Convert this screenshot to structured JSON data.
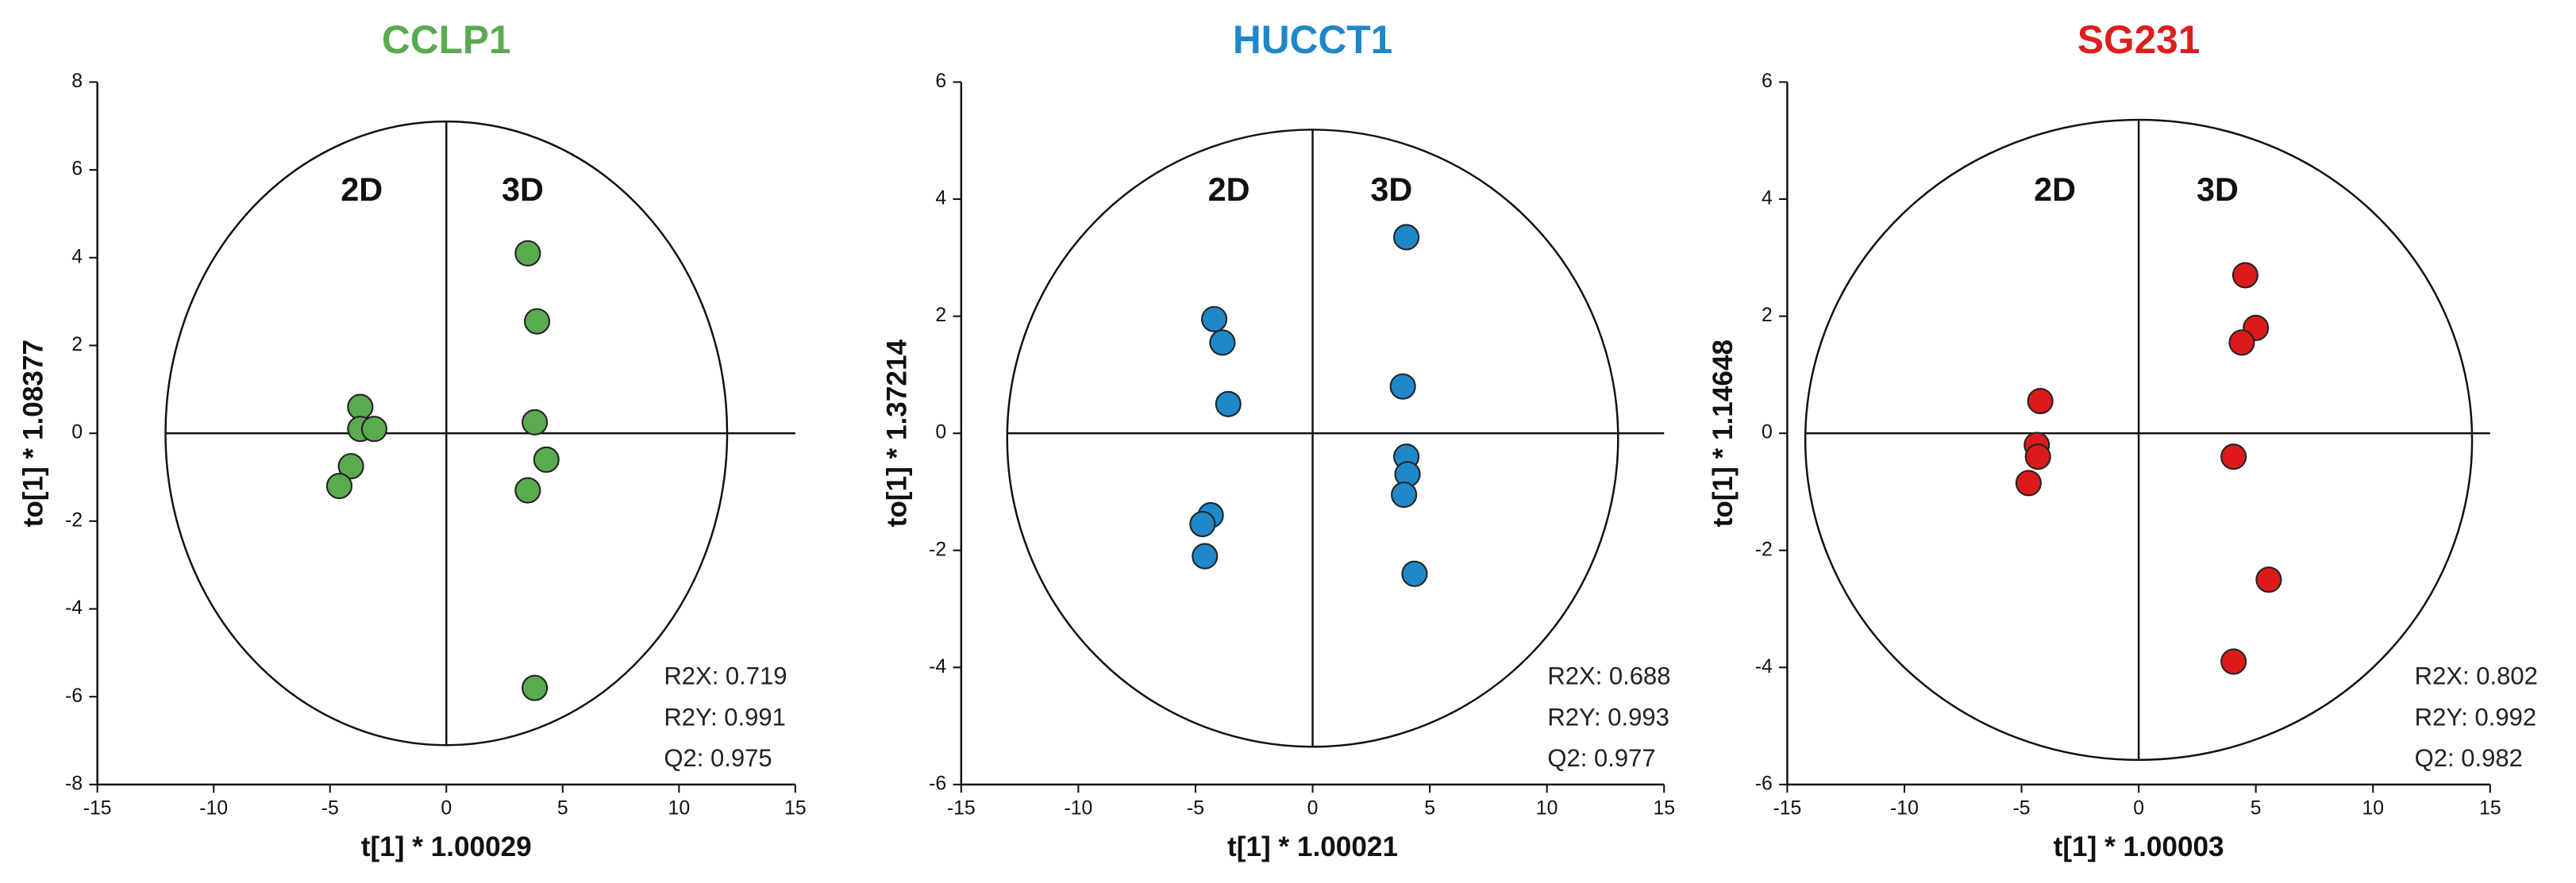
{
  "chart_data": [
    {
      "type": "scatter",
      "title": "CCLP1",
      "title_color": "#5aaa50",
      "color": "#5aaa50",
      "x_label": "t[1] * 1.00029",
      "y_label": "to[1] * 1.08377",
      "xlim": [
        -15,
        15
      ],
      "xticks": [
        -15,
        -10,
        -5,
        0,
        5,
        10,
        15
      ],
      "ylim": [
        -8,
        8
      ],
      "yticks": [
        -8,
        -6,
        -4,
        -2,
        0,
        2,
        4,
        6,
        8
      ],
      "x": [
        -3.7,
        -3.7,
        -3.1,
        -4.1,
        -4.6,
        3.5,
        3.9,
        3.8,
        4.3,
        3.5,
        3.8
      ],
      "values": [
        0.6,
        0.1,
        0.1,
        -0.75,
        -1.2,
        4.1,
        2.55,
        0.25,
        -0.6,
        -1.3,
        -5.8
      ],
      "annotations": [
        "2D",
        "3D"
      ],
      "stats": [
        "R2X: 0.719",
        "R2Y: 0.991",
        "Q2: 0.975"
      ]
    },
    {
      "type": "scatter",
      "title": "HUCCT1",
      "title_color": "#1f87c8",
      "color": "#1e88c9",
      "x_label": "t[1] * 1.00021",
      "y_label": "to[1] * 1.37214",
      "xlim": [
        -15,
        15
      ],
      "xticks": [
        -15,
        -10,
        -5,
        0,
        5,
        10,
        15
      ],
      "ylim": [
        -6,
        6
      ],
      "yticks": [
        -6,
        -4,
        -2,
        0,
        2,
        4,
        6
      ],
      "x": [
        -4.2,
        -3.85,
        -3.6,
        -4.35,
        -4.7,
        -4.6,
        4.0,
        3.85,
        4.0,
        4.05,
        3.9,
        4.35
      ],
      "values": [
        1.95,
        1.55,
        0.5,
        -1.4,
        -1.55,
        -2.1,
        3.35,
        0.8,
        -0.4,
        -0.7,
        -1.05,
        -2.4
      ],
      "annotations": [
        "2D",
        "3D"
      ],
      "stats": [
        "R2X: 0.688",
        "R2Y: 0.993",
        "Q2: 0.977"
      ]
    },
    {
      "type": "scatter",
      "title": "SG231",
      "title_color": "#dd1e1e",
      "color": "#dd1a1a",
      "x_label": "t[1] * 1.00003",
      "y_label": "to[1] * 1.14648",
      "xlim": [
        -15,
        15
      ],
      "xticks": [
        -15,
        -10,
        -5,
        0,
        5,
        10,
        15
      ],
      "ylim": [
        -6,
        6
      ],
      "yticks": [
        -6,
        -4,
        -2,
        0,
        2,
        4,
        6
      ],
      "x": [
        -4.2,
        -4.35,
        -4.3,
        -4.7,
        4.55,
        5.0,
        4.4,
        4.05,
        5.55,
        4.05
      ],
      "values": [
        0.55,
        -0.2,
        -0.4,
        -0.85,
        2.7,
        1.8,
        1.55,
        -0.4,
        -2.5,
        -3.9
      ],
      "annotations": [
        "2D",
        "3D"
      ],
      "stats": [
        "R2X: 0.802",
        "R2Y: 0.992",
        "Q2: 0.982"
      ]
    }
  ]
}
